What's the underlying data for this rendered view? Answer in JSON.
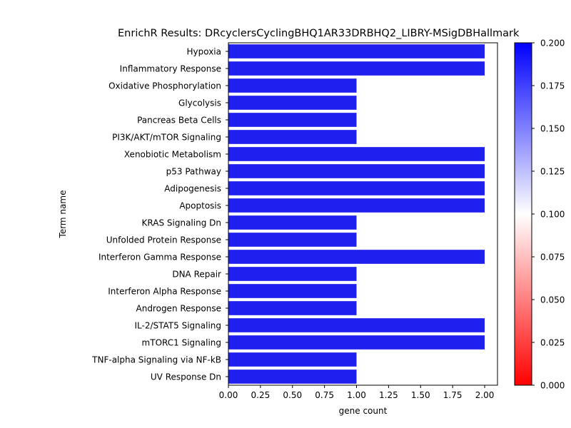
{
  "chart_data": {
    "type": "bar",
    "orientation": "horizontal",
    "title": "EnrichR Results: DRcyclersCyclingBHQ1AR33DRBHQ2_LIBRY-MSigDBHallmark",
    "xlabel": "gene count",
    "ylabel": "Term name",
    "xlim": [
      0,
      2.1
    ],
    "x_ticks": [
      "0.00",
      "0.25",
      "0.50",
      "0.75",
      "1.00",
      "1.25",
      "1.50",
      "1.75",
      "2.00"
    ],
    "grid": false,
    "bar_color": "#1f1fee",
    "categories": [
      "Hypoxia",
      "Inflammatory Response",
      "Oxidative Phosphorylation",
      "Glycolysis",
      "Pancreas Beta Cells",
      "PI3K/AKT/mTOR  Signaling",
      "Xenobiotic Metabolism",
      "p53 Pathway",
      "Adipogenesis",
      "Apoptosis",
      "KRAS Signaling Dn",
      "Unfolded Protein Response",
      "Interferon Gamma Response",
      "DNA Repair",
      "Interferon Alpha Response",
      "Androgen Response",
      "IL-2/STAT5 Signaling",
      "mTORC1 Signaling",
      "TNF-alpha Signaling via NF-kB",
      "UV Response Dn"
    ],
    "values": [
      2,
      2,
      1,
      1,
      1,
      1,
      2,
      2,
      2,
      2,
      1,
      1,
      2,
      1,
      1,
      1,
      2,
      2,
      1,
      1
    ],
    "colorbar": {
      "range": [
        0,
        0.2
      ],
      "ticks": [
        "0.000",
        "0.025",
        "0.050",
        "0.075",
        "0.100",
        "0.125",
        "0.150",
        "0.175",
        "0.200"
      ],
      "colors": [
        "#ff0000",
        "#ffffff",
        "#0000ff"
      ]
    }
  }
}
